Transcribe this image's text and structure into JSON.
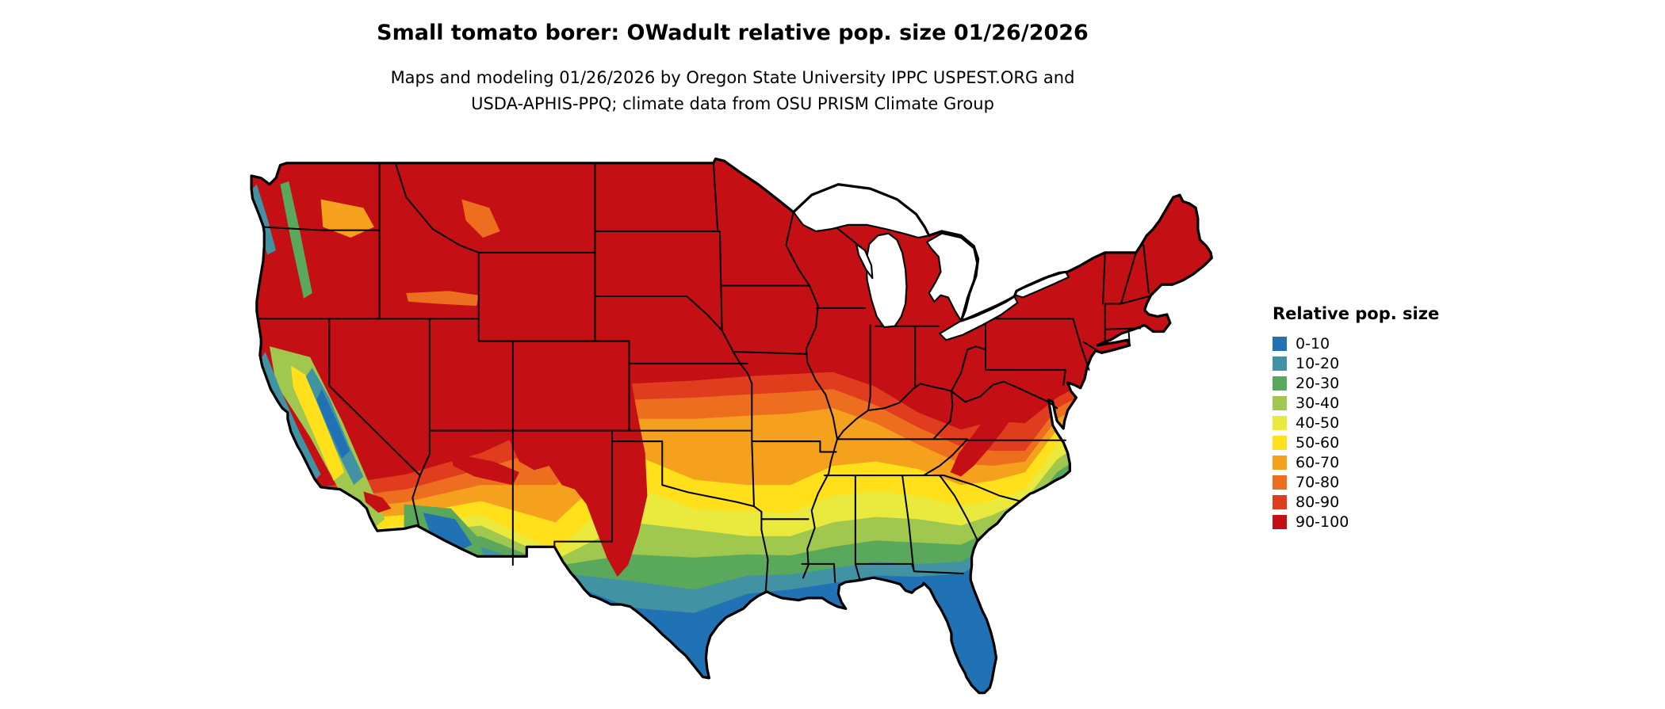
{
  "header": {
    "title": "Small tomato borer: OWadult relative pop. size 01/26/2026",
    "subtitle_line1": "Maps and modeling 01/26/2026 by Oregon State University IPPC USPEST.ORG and",
    "subtitle_line2": "USDA-APHIS-PPQ; climate data from OSU PRISM Climate Group"
  },
  "map": {
    "description": "Continental United States raster map of relative population size",
    "background_color": "#ffffff",
    "border_color": "#000000"
  },
  "legend": {
    "title": "Relative pop. size",
    "classes": [
      {
        "label": "0-10",
        "color": "#2171B5"
      },
      {
        "label": "10-20",
        "color": "#4193A3"
      },
      {
        "label": "20-30",
        "color": "#5AA85C"
      },
      {
        "label": "30-40",
        "color": "#A0C84E"
      },
      {
        "label": "40-50",
        "color": "#E9E93E"
      },
      {
        "label": "50-60",
        "color": "#FFE01A"
      },
      {
        "label": "60-70",
        "color": "#F6A11D"
      },
      {
        "label": "70-80",
        "color": "#ED6E1E"
      },
      {
        "label": "80-90",
        "color": "#E03D1F"
      },
      {
        "label": "90-100",
        "color": "#C40F14"
      }
    ]
  }
}
